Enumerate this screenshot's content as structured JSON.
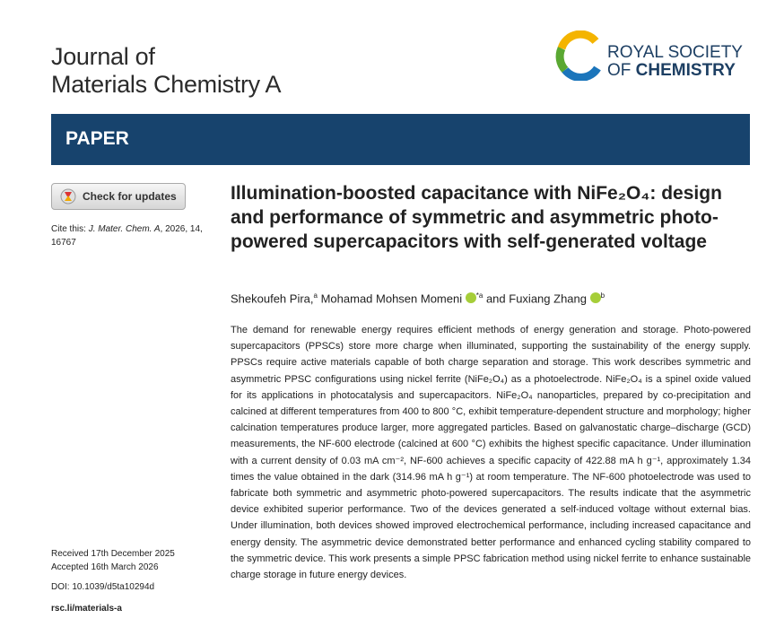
{
  "header": {
    "journal_line1": "Journal of",
    "journal_line2": "Materials Chemistry A",
    "publisher_line1": "ROYAL SOCIETY",
    "publisher_line2_prefix": "OF",
    "publisher_line2": "CHEMISTRY"
  },
  "banner": {
    "label": "PAPER"
  },
  "sidebar": {
    "check_updates": "Check for updates",
    "cite_label": "Cite this:",
    "cite_journal": "J. Mater. Chem. A",
    "cite_rest": ", 2026, 14, 16767",
    "received": "Received 17th December 2025",
    "accepted": "Accepted 16th March 2026",
    "doi": "DOI: 10.1039/d5ta10294d",
    "link": "rsc.li/materials-a"
  },
  "article": {
    "title": "Illumination-boosted capacitance with NiFe₂O₄: design and performance of symmetric and asymmetric photo-powered supercapacitors with self-generated voltage",
    "authors": [
      {
        "name": "Shekoufeh Pira,",
        "affiliation": "a"
      },
      {
        "name": "Mohamad Mohsen Momeni",
        "affiliation": "*a"
      },
      {
        "name": "Fuxiang Zhang",
        "affiliation": "b"
      }
    ],
    "conjunction": "and",
    "abstract": "The demand for renewable energy requires efficient methods of energy generation and storage. Photo-powered supercapacitors (PPSCs) store more charge when illuminated, supporting the sustainability of the energy supply. PPSCs require active materials capable of both charge separation and storage. This work describes symmetric and asymmetric PPSC configurations using nickel ferrite (NiFe₂O₄) as a photoelectrode. NiFe₂O₄ is a spinel oxide valued for its applications in photocatalysis and supercapacitors. NiFe₂O₄ nanoparticles, prepared by co-precipitation and calcined at different temperatures from 400 to 800 °C, exhibit temperature-dependent structure and morphology; higher calcination temperatures produce larger, more aggregated particles. Based on galvanostatic charge–discharge (GCD) measurements, the NF-600 electrode (calcined at 600 °C) exhibits the highest specific capacitance. Under illumination with a current density of 0.03 mA cm⁻², NF-600 achieves a specific capacity of 422.88 mA h g⁻¹, approximately 1.34 times the value obtained in the dark (314.96 mA h g⁻¹) at room temperature. The NF-600 photoelectrode was used to fabricate both symmetric and asymmetric photo-powered supercapacitors. The results indicate that the asymmetric device exhibited superior performance. Two of the devices generated a self-induced voltage without external bias. Under illumination, both devices showed improved electrochemical performance, including increased capacitance and energy density. The asymmetric device demonstrated better performance and enhanced cycling stability compared to the symmetric device. This work presents a simple PPSC fabrication method using nickel ferrite to enhance sustainable charge storage in future energy devices."
  }
}
